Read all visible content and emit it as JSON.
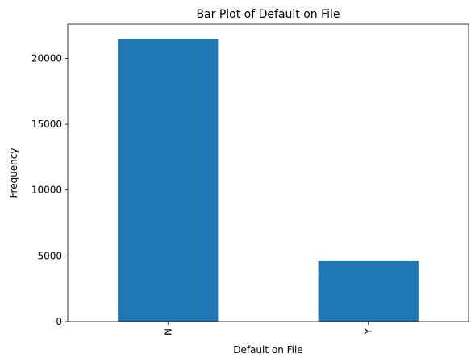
{
  "chart_data": {
    "type": "bar",
    "title": "Bar Plot of Default on File",
    "xlabel": "Default on File",
    "ylabel": "Frequency",
    "categories": [
      "N",
      "Y"
    ],
    "values": [
      21500,
      4600
    ],
    "ylim": [
      0,
      22600
    ],
    "yticks": [
      0,
      5000,
      10000,
      15000,
      20000
    ],
    "ytick_labels": [
      "0",
      "5000",
      "10000",
      "15000",
      "20000"
    ],
    "xtick_rotation": 90,
    "grid": false,
    "legend": "none",
    "bar_color": "#1f77b4"
  }
}
